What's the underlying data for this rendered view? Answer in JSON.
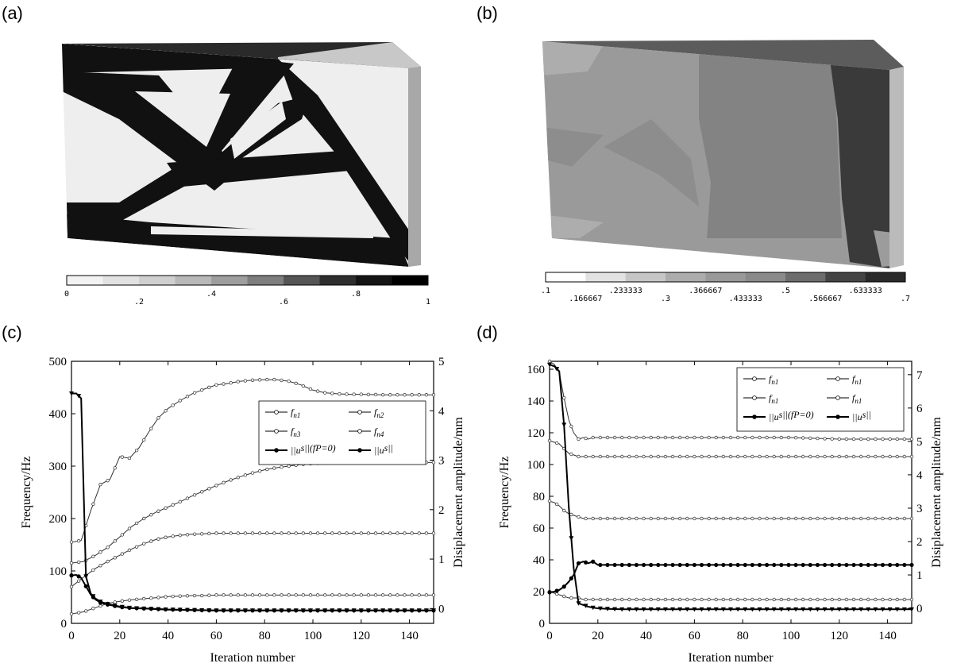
{
  "panels": {
    "a": {
      "label": "(a)"
    },
    "b": {
      "label": "(b)"
    },
    "c": {
      "label": "(c)"
    },
    "d": {
      "label": "(d)"
    }
  },
  "colorbar_a": {
    "colors": [
      "#f2f2f2",
      "#e2e2e2",
      "#cfcfcf",
      "#b8b8b8",
      "#9e9e9e",
      "#7e7e7e",
      "#555555",
      "#2e2e2e",
      "#141414",
      "#000000"
    ],
    "ticks": [
      {
        "text": "0",
        "pos": 0,
        "row": 0
      },
      {
        "text": ".2",
        "pos": 0.2,
        "row": 1
      },
      {
        "text": ".4",
        "pos": 0.4,
        "row": 0
      },
      {
        "text": ".6",
        "pos": 0.6,
        "row": 1
      },
      {
        "text": ".8",
        "pos": 0.8,
        "row": 0
      },
      {
        "text": "1",
        "pos": 1.0,
        "row": 1
      }
    ]
  },
  "colorbar_b": {
    "colors": [
      "#ffffff",
      "#e2e2e2",
      "#c6c6c6",
      "#acacac",
      "#999999",
      "#8a8a8a",
      "#6c6c6c",
      "#444444",
      "#2a2a2a"
    ],
    "ticks": [
      {
        "text": ".1",
        "pos": 0,
        "row": 0
      },
      {
        "text": ".166667",
        "pos": 0.1111,
        "row": 1
      },
      {
        "text": ".233333",
        "pos": 0.2222,
        "row": 0
      },
      {
        "text": ".3",
        "pos": 0.3333,
        "row": 1
      },
      {
        "text": ".366667",
        "pos": 0.4444,
        "row": 0
      },
      {
        "text": ".433333",
        "pos": 0.5556,
        "row": 1
      },
      {
        "text": ".5",
        "pos": 0.6667,
        "row": 0
      },
      {
        "text": ".566667",
        "pos": 0.7778,
        "row": 1
      },
      {
        "text": ".633333",
        "pos": 0.8889,
        "row": 0
      },
      {
        "text": ".7",
        "pos": 1.0,
        "row": 1
      }
    ]
  },
  "chart_data": [
    {
      "type": "line",
      "panel": "(c)",
      "xlabel": "Iteration number",
      "ylabel": "Frequency/Hz",
      "y2label": "Disiplacement amplitude/mm",
      "xlim": [
        0,
        150
      ],
      "ylim": [
        0,
        500
      ],
      "y2lim": [
        -0.3,
        5
      ],
      "xticks": [
        "0",
        "20",
        "40",
        "60",
        "80",
        "100",
        "120",
        "140"
      ],
      "yticks": [
        "0",
        "100",
        "200",
        "300",
        "400",
        "500"
      ],
      "y2ticks": [
        "0",
        "1",
        "2",
        "3",
        "4",
        "5"
      ],
      "legend": {
        "placement": "upper-right",
        "entries": [
          "f",
          "f",
          "f",
          "f",
          "||u",
          "||u"
        ],
        "subs": [
          "n1",
          "n2",
          "n3",
          "n4",
          "",
          ""
        ],
        "suffix": [
          "",
          "",
          "",
          "",
          "s||(fP=0)",
          "s||"
        ]
      },
      "series": [
        {
          "name": "fn1",
          "axis": "left",
          "x": [
            0,
            4,
            8,
            12,
            16,
            20,
            24,
            28,
            32,
            36,
            40,
            45,
            50,
            55,
            60,
            65,
            70,
            75,
            80,
            85,
            90,
            95,
            100,
            105,
            110,
            115,
            120,
            130,
            140,
            150
          ],
          "values": [
            155,
            158,
            215,
            265,
            275,
            318,
            315,
            335,
            365,
            392,
            410,
            425,
            438,
            447,
            455,
            458,
            462,
            464,
            465,
            465,
            462,
            455,
            445,
            440,
            438,
            437,
            437,
            436,
            436,
            436
          ]
        },
        {
          "name": "fn2",
          "axis": "left",
          "x": [
            0,
            5,
            10,
            15,
            20,
            25,
            30,
            35,
            40,
            45,
            50,
            55,
            60,
            65,
            70,
            75,
            80,
            85,
            90,
            95,
            100,
            105,
            110,
            120,
            130,
            140,
            150
          ],
          "values": [
            115,
            118,
            130,
            145,
            165,
            185,
            200,
            212,
            222,
            232,
            243,
            253,
            263,
            272,
            280,
            287,
            293,
            297,
            300,
            303,
            305,
            306,
            307,
            307,
            307,
            307,
            307
          ]
        },
        {
          "name": "fn3",
          "axis": "left",
          "x": [
            0,
            5,
            10,
            15,
            20,
            25,
            30,
            35,
            40,
            45,
            50,
            55,
            60,
            70,
            80,
            90,
            100,
            110,
            120,
            130,
            140,
            150
          ],
          "values": [
            70,
            88,
            105,
            118,
            130,
            142,
            152,
            160,
            165,
            168,
            170,
            171,
            172,
            172,
            172,
            172,
            172,
            172,
            172,
            172,
            172,
            172
          ]
        },
        {
          "name": "fn4",
          "axis": "left",
          "x": [
            0,
            5,
            10,
            15,
            20,
            25,
            30,
            35,
            40,
            45,
            50,
            55,
            60,
            70,
            80,
            90,
            100,
            110,
            120,
            130,
            140,
            150
          ],
          "values": [
            18,
            22,
            30,
            38,
            42,
            45,
            47,
            49,
            51,
            52,
            53,
            53,
            54,
            54,
            54,
            54,
            54,
            54,
            54,
            54,
            54,
            54
          ]
        },
        {
          "name": "||us||(fP=0)",
          "axis": "right",
          "x": [
            0,
            2,
            4,
            6,
            8,
            10,
            12,
            15,
            18,
            20,
            25,
            30,
            40,
            50,
            60,
            80,
            100,
            120,
            150
          ],
          "values": [
            0.67,
            0.68,
            0.62,
            0.45,
            0.28,
            0.18,
            0.12,
            0.08,
            0.05,
            0.03,
            0.01,
            0.0,
            -0.02,
            -0.03,
            -0.04,
            -0.04,
            -0.04,
            -0.04,
            -0.04
          ]
        },
        {
          "name": "||us||",
          "axis": "right",
          "x": [
            0,
            2,
            4,
            6,
            8,
            10,
            12,
            15,
            18,
            20,
            25,
            30,
            40,
            50,
            60,
            80,
            100,
            120,
            150
          ],
          "values": [
            4.35,
            4.35,
            4.25,
            0.65,
            0.3,
            0.2,
            0.14,
            0.09,
            0.06,
            0.04,
            0.01,
            0.0,
            -0.02,
            -0.03,
            -0.04,
            -0.04,
            -0.04,
            -0.04,
            -0.04
          ]
        }
      ]
    },
    {
      "type": "line",
      "panel": "(d)",
      "xlabel": "Iteration number",
      "ylabel": "Frequency/Hz",
      "y2label": "Disiplacement amplitude/mm",
      "xlim": [
        0,
        150
      ],
      "ylim": [
        0,
        165
      ],
      "y2lim": [
        -0.45,
        7.4
      ],
      "xticks": [
        "0",
        "20",
        "40",
        "60",
        "80",
        "100",
        "120",
        "140"
      ],
      "yticks": [
        "0",
        "20",
        "40",
        "60",
        "80",
        "100",
        "120",
        "140",
        "160"
      ],
      "y2ticks": [
        "0",
        "1",
        "2",
        "3",
        "4",
        "5",
        "6",
        "7"
      ],
      "legend": {
        "placement": "upper-right",
        "entries": [
          "f",
          "f",
          "f",
          "f",
          "||u",
          "||u"
        ],
        "subs": [
          "n1",
          "n1",
          "n1",
          "n1",
          "",
          ""
        ],
        "suffix": [
          "",
          "",
          "",
          "",
          "s||(fP=0)",
          "s||"
        ]
      },
      "series": [
        {
          "name": "fn1 (upper)",
          "axis": "left",
          "x": [
            0,
            2,
            4,
            6,
            8,
            10,
            12,
            14,
            16,
            18,
            20,
            30,
            40,
            50,
            60,
            80,
            100,
            120,
            150
          ],
          "values": [
            165,
            163,
            158,
            142,
            128,
            120,
            116,
            117,
            116,
            117,
            117,
            117,
            117,
            117,
            117,
            117,
            117,
            116,
            116
          ]
        },
        {
          "name": "fn2",
          "axis": "left",
          "x": [
            0,
            2,
            4,
            6,
            8,
            10,
            12,
            14,
            16,
            18,
            20,
            30,
            40,
            60,
            80,
            100,
            120,
            150
          ],
          "values": [
            115,
            114,
            113,
            110,
            107,
            106,
            105,
            105,
            105,
            105,
            105,
            105,
            105,
            105,
            105,
            105,
            105,
            105
          ]
        },
        {
          "name": "fn3",
          "axis": "left",
          "x": [
            0,
            2,
            4,
            6,
            8,
            10,
            12,
            14,
            16,
            18,
            20,
            30,
            40,
            60,
            80,
            100,
            120,
            150
          ],
          "values": [
            77,
            76,
            74,
            71,
            69,
            68,
            67,
            66,
            66,
            66,
            66,
            66,
            66,
            66,
            66,
            66,
            66,
            66
          ]
        },
        {
          "name": "fn4",
          "axis": "left",
          "x": [
            0,
            2,
            4,
            6,
            8,
            10,
            12,
            14,
            16,
            18,
            20,
            30,
            40,
            60,
            80,
            100,
            120,
            150
          ],
          "values": [
            20,
            19,
            18,
            17,
            16,
            16,
            16,
            15,
            15,
            15,
            15,
            15,
            15,
            15,
            15,
            15,
            15,
            15
          ]
        },
        {
          "name": "||us||(fP=0)",
          "axis": "right",
          "x": [
            0,
            2,
            4,
            6,
            8,
            10,
            12,
            14,
            16,
            18,
            20,
            25,
            30,
            40,
            60,
            80,
            100,
            120,
            150
          ],
          "values": [
            0.48,
            0.5,
            0.55,
            0.65,
            0.8,
            1.0,
            1.35,
            1.4,
            1.35,
            1.4,
            1.3,
            1.3,
            1.3,
            1.3,
            1.3,
            1.3,
            1.3,
            1.3,
            1.3
          ]
        },
        {
          "name": "||us||",
          "axis": "right",
          "x": [
            0,
            2,
            4,
            6,
            8,
            10,
            12,
            14,
            16,
            18,
            20,
            25,
            30,
            40,
            60,
            80,
            100,
            120,
            150
          ],
          "values": [
            7.3,
            7.25,
            7.1,
            5.5,
            3.0,
            1.2,
            0.15,
            0.1,
            0.05,
            0.02,
            0.0,
            -0.02,
            -0.03,
            -0.03,
            -0.03,
            -0.03,
            -0.03,
            -0.03,
            -0.03
          ]
        }
      ]
    }
  ]
}
